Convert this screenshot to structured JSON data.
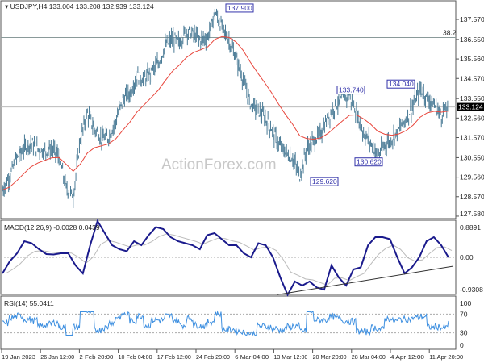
{
  "chart_data": {
    "type": "line",
    "title": "USDJPY,H4",
    "ohlc_readout": "133.004 133.208 132.939 133.124",
    "watermark": "ActionForex.com",
    "price_axis_ticks": [
      "137.570",
      "136.550",
      "135.560",
      "134.570",
      "133.550",
      "132.560",
      "131.570",
      "130.550",
      "129.560",
      "128.570",
      "127.580"
    ],
    "current_price": "133.124",
    "fib_label": "38.2",
    "fib_level": 136.65,
    "annotations": [
      {
        "label": "137.900",
        "value": 137.9
      },
      {
        "label": "129.620",
        "value": 129.62
      },
      {
        "label": "133.740",
        "value": 133.74
      },
      {
        "label": "130.620",
        "value": 130.62
      },
      {
        "label": "134.040",
        "value": 134.04
      }
    ],
    "x_ticks": [
      "19 Jan 2023",
      "26 Jan 12:00",
      "2 Feb 20:00",
      "10 Feb 04:00",
      "17 Feb 12:00",
      "24 Feb 20:00",
      "6 Mar 04:00",
      "13 Mar 12:00",
      "20 Mar 20:00",
      "28 Mar 04:00",
      "4 Apr 12:00",
      "11 Apr 20:00"
    ],
    "close": [
      128.9,
      129.6,
      130.5,
      131.0,
      131.3,
      131.0,
      130.9,
      131.0,
      130.6,
      129.0,
      128.6,
      131.5,
      132.8,
      132.0,
      131.5,
      131.6,
      132.4,
      133.5,
      133.8,
      134.7,
      134.5,
      134.9,
      135.3,
      136.2,
      136.6,
      136.4,
      137.0,
      136.8,
      136.5,
      136.7,
      137.9,
      137.2,
      136.5,
      135.6,
      134.5,
      133.3,
      133.0,
      132.6,
      132.0,
      131.2,
      130.8,
      130.5,
      129.62,
      131.0,
      131.4,
      131.8,
      132.6,
      133.2,
      133.5,
      133.74,
      132.8,
      131.8,
      131.3,
      130.62,
      131.2,
      131.5,
      132.0,
      132.5,
      133.2,
      134.04,
      133.6,
      133.2,
      132.7,
      133.124
    ],
    "ma_label": "",
    "ma_color": "#e8463c",
    "price_color": "#4a7b96",
    "macd": {
      "label": "MACD(12,26,9) -0.0028 0.0439",
      "ticks": [
        "0.8891",
        "0.00",
        "-0.9308"
      ],
      "color": "#1a1a8c",
      "values": [
        -0.4,
        -0.1,
        0.1,
        0.4,
        0.35,
        0.2,
        0.08,
        0.07,
        0.1,
        0.1,
        -0.2,
        -0.4,
        0.3,
        0.9,
        0.6,
        0.3,
        0.2,
        0.15,
        0.4,
        0.3,
        0.55,
        0.75,
        0.7,
        0.5,
        0.4,
        0.35,
        0.3,
        0.2,
        0.55,
        0.6,
        0.45,
        0.3,
        0.3,
        0.1,
        0.0,
        0.35,
        0.3,
        0.0,
        -0.5,
        -0.93,
        -0.6,
        -0.7,
        -0.6,
        -0.75,
        -0.8,
        -0.2,
        -0.5,
        -0.7,
        -0.3,
        -0.25,
        0.3,
        0.5,
        0.5,
        0.45,
        0.0,
        -0.4,
        -0.25,
        0.0,
        0.4,
        0.5,
        0.3,
        0.0
      ]
    },
    "rsi": {
      "label": "RSI(14) 55.0411",
      "ticks": [
        "100",
        "70",
        "30",
        "0"
      ],
      "color": "#3d8fe0",
      "levels": [
        70,
        30
      ]
    }
  }
}
